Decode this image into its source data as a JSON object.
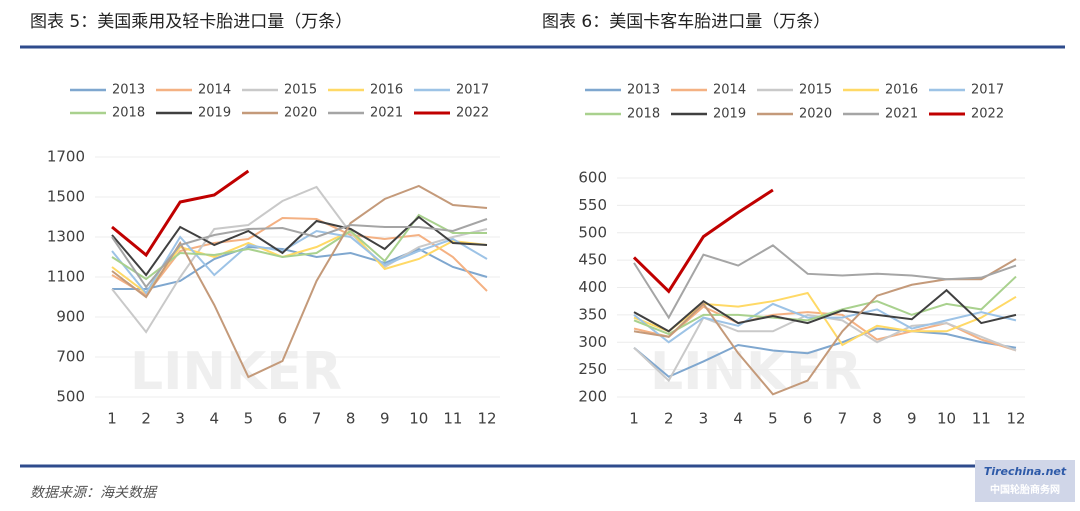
{
  "chart_data": [
    {
      "type": "line",
      "title": "图表 5：美国乘用及轻卡胎进口量（万条）",
      "categories": [
        "1",
        "2",
        "3",
        "4",
        "5",
        "6",
        "7",
        "8",
        "9",
        "10",
        "11",
        "12"
      ],
      "ylim": [
        500,
        1700
      ],
      "yticks": [
        500,
        700,
        900,
        1100,
        1300,
        1500,
        1700
      ],
      "grid": true,
      "series": [
        {
          "name": "2013",
          "color": "#7fa7cf",
          "values": [
            1040,
            1040,
            1080,
            1190,
            1250,
            1240,
            1200,
            1220,
            1170,
            1240,
            1150,
            1100
          ]
        },
        {
          "name": "2014",
          "color": "#f4b183",
          "values": [
            1110,
            1010,
            1230,
            1270,
            1290,
            1395,
            1390,
            1310,
            1290,
            1310,
            1200,
            1030
          ]
        },
        {
          "name": "2015",
          "color": "#c9c9c9",
          "values": [
            1040,
            825,
            1100,
            1340,
            1360,
            1480,
            1550,
            1320,
            1150,
            1250,
            1300,
            1340
          ]
        },
        {
          "name": "2016",
          "color": "#ffd966",
          "values": [
            1150,
            1020,
            1250,
            1200,
            1270,
            1200,
            1250,
            1330,
            1140,
            1190,
            1280,
            1260
          ]
        },
        {
          "name": "2017",
          "color": "#9dc3e6",
          "values": [
            1230,
            1020,
            1300,
            1110,
            1260,
            1230,
            1330,
            1300,
            1160,
            1230,
            1290,
            1190
          ]
        },
        {
          "name": "2018",
          "color": "#a9d18e",
          "values": [
            1200,
            1090,
            1220,
            1210,
            1240,
            1200,
            1220,
            1330,
            1180,
            1410,
            1320,
            1320
          ]
        },
        {
          "name": "2019",
          "color": "#404040",
          "values": [
            1310,
            1110,
            1350,
            1260,
            1330,
            1220,
            1380,
            1340,
            1240,
            1400,
            1270,
            1260
          ]
        },
        {
          "name": "2020",
          "color": "#c49a7a",
          "values": [
            1130,
            1000,
            1270,
            960,
            600,
            680,
            1080,
            1370,
            1490,
            1555,
            1460,
            1445
          ]
        },
        {
          "name": "2021",
          "color": "#a5a5a5",
          "values": [
            1300,
            1050,
            1260,
            1310,
            1340,
            1345,
            1300,
            1360,
            1350,
            1350,
            1330,
            1390
          ]
        },
        {
          "name": "2022",
          "color": "#c00000",
          "values": [
            1350,
            1210,
            1475,
            1510,
            1630,
            null,
            null,
            null,
            null,
            null,
            null,
            null
          ]
        }
      ]
    },
    {
      "type": "line",
      "title": "图表 6：美国卡客车胎进口量（万条）",
      "categories": [
        "1",
        "2",
        "3",
        "4",
        "5",
        "6",
        "7",
        "8",
        "9",
        "10",
        "11",
        "12"
      ],
      "ylim": [
        200,
        600
      ],
      "yticks": [
        200,
        250,
        300,
        350,
        400,
        450,
        500,
        550,
        600
      ],
      "grid": true,
      "series": [
        {
          "name": "2013",
          "color": "#7fa7cf",
          "values": [
            290,
            237,
            265,
            295,
            285,
            280,
            300,
            325,
            320,
            315,
            300,
            290
          ]
        },
        {
          "name": "2014",
          "color": "#f4b183",
          "values": [
            325,
            310,
            365,
            335,
            350,
            355,
            350,
            305,
            320,
            335,
            305,
            285
          ]
        },
        {
          "name": "2015",
          "color": "#c9c9c9",
          "values": [
            290,
            230,
            345,
            320,
            320,
            350,
            340,
            300,
            330,
            335,
            310,
            285
          ]
        },
        {
          "name": "2016",
          "color": "#ffd966",
          "values": [
            345,
            320,
            370,
            365,
            375,
            390,
            295,
            330,
            320,
            320,
            345,
            383
          ]
        },
        {
          "name": "2017",
          "color": "#9dc3e6",
          "values": [
            350,
            300,
            345,
            330,
            370,
            345,
            345,
            360,
            325,
            340,
            355,
            340
          ]
        },
        {
          "name": "2018",
          "color": "#a9d18e",
          "values": [
            340,
            315,
            350,
            350,
            345,
            340,
            360,
            375,
            350,
            370,
            360,
            420
          ]
        },
        {
          "name": "2019",
          "color": "#404040",
          "values": [
            355,
            320,
            375,
            335,
            348,
            335,
            358,
            350,
            342,
            395,
            335,
            350
          ]
        },
        {
          "name": "2020",
          "color": "#c49a7a",
          "values": [
            320,
            310,
            370,
            280,
            205,
            230,
            320,
            385,
            405,
            415,
            415,
            452
          ]
        },
        {
          "name": "2021",
          "color": "#a5a5a5",
          "values": [
            445,
            345,
            460,
            440,
            477,
            425,
            422,
            425,
            422,
            415,
            418,
            440
          ]
        },
        {
          "name": "2022",
          "color": "#c00000",
          "values": [
            455,
            393,
            493,
            537,
            578,
            null,
            null,
            null,
            null,
            null,
            null,
            null
          ]
        }
      ]
    }
  ],
  "watermark": "LINKER",
  "source": "数据来源：海关数据",
  "logo": {
    "name": "Tirechina.net",
    "subtitle": "中国轮胎商务网"
  }
}
